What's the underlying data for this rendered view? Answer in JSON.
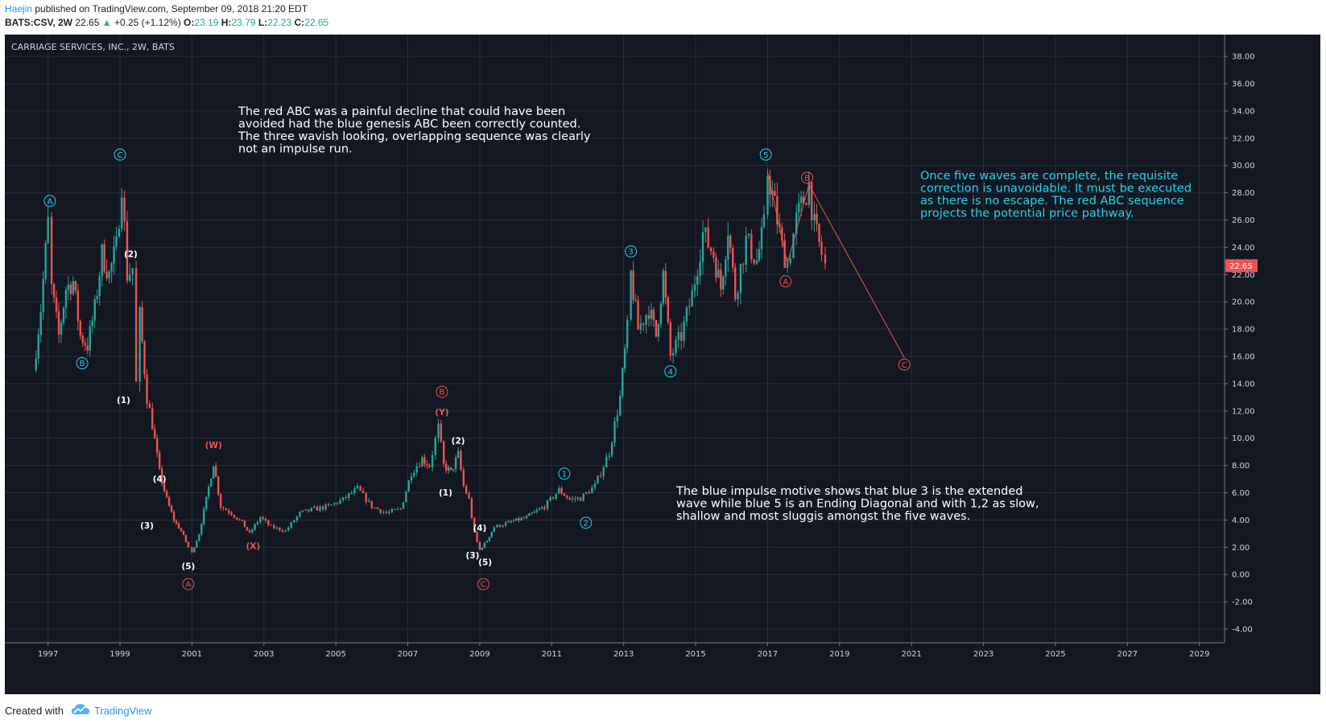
{
  "header": {
    "author": "Haejin",
    "published_text": "published on TradingView.com, September 09, 2018 21:20 EDT",
    "symbol": "BATS:CSV, 2W",
    "last": "22.65",
    "up_arrow_icon": "triangle-up-icon",
    "change": "+0.25 (+1.12%)",
    "open_label": "O:",
    "open": "23.19",
    "high_label": "H:",
    "high": "23.79",
    "low_label": "L:",
    "low": "22.23",
    "close_label": "C:",
    "close": "22.65"
  },
  "footer": {
    "created_with": "Created with",
    "brand": "TradingView",
    "logo_icon": "tradingview-cloud-icon"
  },
  "colors": {
    "background": "#131722",
    "grid": "#2a2e39",
    "up": "#26a69a",
    "down": "#ef5350",
    "blue_label": "#22d3ee",
    "red_label": "#ef5350"
  },
  "chart_data": {
    "type": "candlestick",
    "title": "CARRIAGE SERVICES, INC., 2W, BATS",
    "y_ticks": [
      "38.00",
      "36.00",
      "34.00",
      "32.00",
      "30.00",
      "28.00",
      "26.00",
      "24.00",
      "22.00",
      "20.00",
      "18.00",
      "16.00",
      "14.00",
      "12.00",
      "10.00",
      "8.00",
      "6.00",
      "4.00",
      "2.00",
      "0.00",
      "-2.00",
      "-4.00"
    ],
    "ylim": [
      -5.0,
      39.6
    ],
    "x_ticks": [
      "1997",
      "1999",
      "2001",
      "2003",
      "2005",
      "2007",
      "2009",
      "2011",
      "2013",
      "2015",
      "2017",
      "2019",
      "2021",
      "2023",
      "2025",
      "2027",
      "2029"
    ],
    "xlim": [
      1995.8,
      2029.7
    ],
    "grid": true,
    "last_price_label": "22.65",
    "price_path": [
      [
        1996.6,
        15.0
      ],
      [
        1996.8,
        19.5
      ],
      [
        1997.0,
        25.8
      ],
      [
        1997.1,
        21.0
      ],
      [
        1997.3,
        17.5
      ],
      [
        1997.5,
        21.0
      ],
      [
        1997.7,
        21.5
      ],
      [
        1997.9,
        17.5
      ],
      [
        1998.1,
        16.8
      ],
      [
        1998.3,
        19.5
      ],
      [
        1998.5,
        23.5
      ],
      [
        1998.7,
        22.0
      ],
      [
        1998.9,
        24.0
      ],
      [
        1999.05,
        28.8
      ],
      [
        1999.2,
        22.0
      ],
      [
        1999.35,
        22.5
      ],
      [
        1999.45,
        14.0
      ],
      [
        1999.55,
        19.0
      ],
      [
        1999.75,
        13.0
      ],
      [
        1999.9,
        11.0
      ],
      [
        2000.1,
        7.5
      ],
      [
        2000.3,
        5.5
      ],
      [
        2000.5,
        4.0
      ],
      [
        2000.7,
        3.2
      ],
      [
        2000.9,
        2.0
      ],
      [
        2001.0,
        1.6
      ],
      [
        2001.2,
        3.0
      ],
      [
        2001.4,
        5.5
      ],
      [
        2001.6,
        8.2
      ],
      [
        2001.8,
        5.0
      ],
      [
        2002.1,
        4.5
      ],
      [
        2002.4,
        3.8
      ],
      [
        2002.6,
        3.0
      ],
      [
        2002.9,
        4.2
      ],
      [
        2003.2,
        3.5
      ],
      [
        2003.6,
        3.2
      ],
      [
        2004.0,
        4.5
      ],
      [
        2004.4,
        4.8
      ],
      [
        2004.8,
        5.0
      ],
      [
        2005.2,
        5.5
      ],
      [
        2005.6,
        6.3
      ],
      [
        2006.0,
        5.0
      ],
      [
        2006.4,
        4.5
      ],
      [
        2006.8,
        4.8
      ],
      [
        2007.1,
        7.5
      ],
      [
        2007.4,
        8.5
      ],
      [
        2007.6,
        8.0
      ],
      [
        2007.85,
        10.8
      ],
      [
        2008.0,
        8.0
      ],
      [
        2008.2,
        7.5
      ],
      [
        2008.4,
        8.8
      ],
      [
        2008.55,
        6.5
      ],
      [
        2008.7,
        5.5
      ],
      [
        2008.85,
        3.0
      ],
      [
        2009.0,
        1.8
      ],
      [
        2009.2,
        2.5
      ],
      [
        2009.4,
        3.5
      ],
      [
        2009.8,
        3.8
      ],
      [
        2010.3,
        4.2
      ],
      [
        2010.8,
        5.0
      ],
      [
        2011.2,
        6.2
      ],
      [
        2011.5,
        5.5
      ],
      [
        2011.8,
        5.6
      ],
      [
        2012.2,
        6.5
      ],
      [
        2012.6,
        9.0
      ],
      [
        2012.9,
        13.0
      ],
      [
        2013.1,
        18.0
      ],
      [
        2013.2,
        22.0
      ],
      [
        2013.4,
        18.0
      ],
      [
        2013.7,
        19.5
      ],
      [
        2013.9,
        17.5
      ],
      [
        2014.1,
        22.0
      ],
      [
        2014.3,
        16.0
      ],
      [
        2014.6,
        17.5
      ],
      [
        2014.9,
        20.5
      ],
      [
        2015.2,
        25.0
      ],
      [
        2015.5,
        23.5
      ],
      [
        2015.7,
        21.0
      ],
      [
        2015.9,
        25.5
      ],
      [
        2016.1,
        20.5
      ],
      [
        2016.4,
        24.5
      ],
      [
        2016.7,
        23.0
      ],
      [
        2016.9,
        25.5
      ],
      [
        2017.0,
        29.5
      ],
      [
        2017.2,
        27.0
      ],
      [
        2017.4,
        24.0
      ],
      [
        2017.55,
        22.8
      ],
      [
        2017.8,
        26.0
      ],
      [
        2018.0,
        27.5
      ],
      [
        2018.15,
        28.6
      ],
      [
        2018.3,
        25.5
      ],
      [
        2018.5,
        23.5
      ],
      [
        2018.6,
        22.65
      ]
    ],
    "wave_labels": {
      "blue_circled": [
        {
          "text": "A",
          "x": 1997.05,
          "y": 27.4
        },
        {
          "text": "B",
          "x": 1997.95,
          "y": 15.5
        },
        {
          "text": "C",
          "x": 1999.0,
          "y": 30.8
        },
        {
          "text": "1",
          "x": 2011.35,
          "y": 7.4
        },
        {
          "text": "2",
          "x": 2011.95,
          "y": 3.8
        },
        {
          "text": "3",
          "x": 2013.2,
          "y": 23.7
        },
        {
          "text": "4",
          "x": 2014.3,
          "y": 14.9
        },
        {
          "text": "5",
          "x": 2016.95,
          "y": 30.8
        }
      ],
      "red_circled": [
        {
          "text": "A",
          "x": 2000.9,
          "y": -0.7
        },
        {
          "text": "B",
          "x": 2007.95,
          "y": 13.4
        },
        {
          "text": "C",
          "x": 2009.1,
          "y": -0.7
        },
        {
          "text": "A",
          "x": 2017.5,
          "y": 21.5
        },
        {
          "text": "B",
          "x": 2018.1,
          "y": 29.1
        },
        {
          "text": "C",
          "x": 2020.8,
          "y": 15.4
        }
      ],
      "white_parens": [
        {
          "text": "(2)",
          "x": 1999.3,
          "y": 23.5
        },
        {
          "text": "(1)",
          "x": 1999.1,
          "y": 12.8
        },
        {
          "text": "(4)",
          "x": 2000.1,
          "y": 7.0
        },
        {
          "text": "(3)",
          "x": 1999.75,
          "y": 3.6
        },
        {
          "text": "(5)",
          "x": 2000.9,
          "y": 0.6
        },
        {
          "text": "(2)",
          "x": 2008.4,
          "y": 9.8
        },
        {
          "text": "(1)",
          "x": 2008.05,
          "y": 6.0
        },
        {
          "text": "(4)",
          "x": 2009.0,
          "y": 3.4
        },
        {
          "text": "(3)",
          "x": 2008.8,
          "y": 1.4
        },
        {
          "text": "(5)",
          "x": 2009.15,
          "y": 0.9
        }
      ],
      "red_parens": [
        {
          "text": "(W)",
          "x": 2001.6,
          "y": 9.5
        },
        {
          "text": "(X)",
          "x": 2002.7,
          "y": 2.1
        },
        {
          "text": "(Y)",
          "x": 2007.95,
          "y": 11.9
        }
      ]
    },
    "projection_path": [
      [
        2017.0,
        29.5
      ],
      [
        2017.55,
        22.8
      ],
      [
        2018.15,
        28.6
      ],
      [
        2020.8,
        15.9
      ]
    ],
    "annotations": [
      {
        "lines": [
          "The red ABC was a painful decline that could have been",
          "avoided had the blue genesis ABC been correctly counted.",
          "The three wavish looking, overlapping sequence was clearly",
          "not an impulse run."
        ],
        "color": "#ffffff"
      },
      {
        "lines": [
          "Once five waves are complete, the requisite",
          "correction is unavoidable. It must be executed",
          "as there is no escape. The red ABC sequence",
          "projects the potential price pathway."
        ],
        "color": "#22d3ee"
      },
      {
        "lines": [
          "The blue impulse motive shows that blue 3 is the extended",
          "wave while blue 5 is an Ending Diagonal and with 1,2 as slow,",
          "shallow and most sluggis amongst the five waves."
        ],
        "color": "#ffffff"
      }
    ]
  }
}
